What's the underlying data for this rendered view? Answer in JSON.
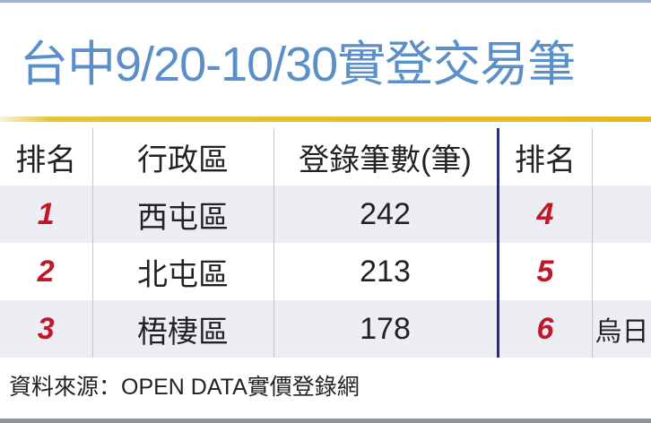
{
  "title": "台中9/20-10/30實登交易筆",
  "table": {
    "headers": [
      "排名",
      "行政區",
      "登錄筆數(筆)",
      "排名",
      ""
    ],
    "rows": [
      {
        "rank_a": "1",
        "district_a": "西屯區",
        "count_a": "242",
        "rank_b": "4",
        "district_b": ""
      },
      {
        "rank_a": "2",
        "district_a": "北屯區",
        "count_a": "213",
        "rank_b": "5",
        "district_b": ""
      },
      {
        "rank_a": "3",
        "district_a": "梧棲區",
        "count_a": "178",
        "rank_b": "6",
        "district_b": "烏日"
      }
    ]
  },
  "source": "資料來源：OPEN  DATA實價登錄網",
  "colors": {
    "title": "#5b8fc8",
    "rank": "#c0182a",
    "accent_line": "#e7b820",
    "divider": "#2d2e6e"
  }
}
